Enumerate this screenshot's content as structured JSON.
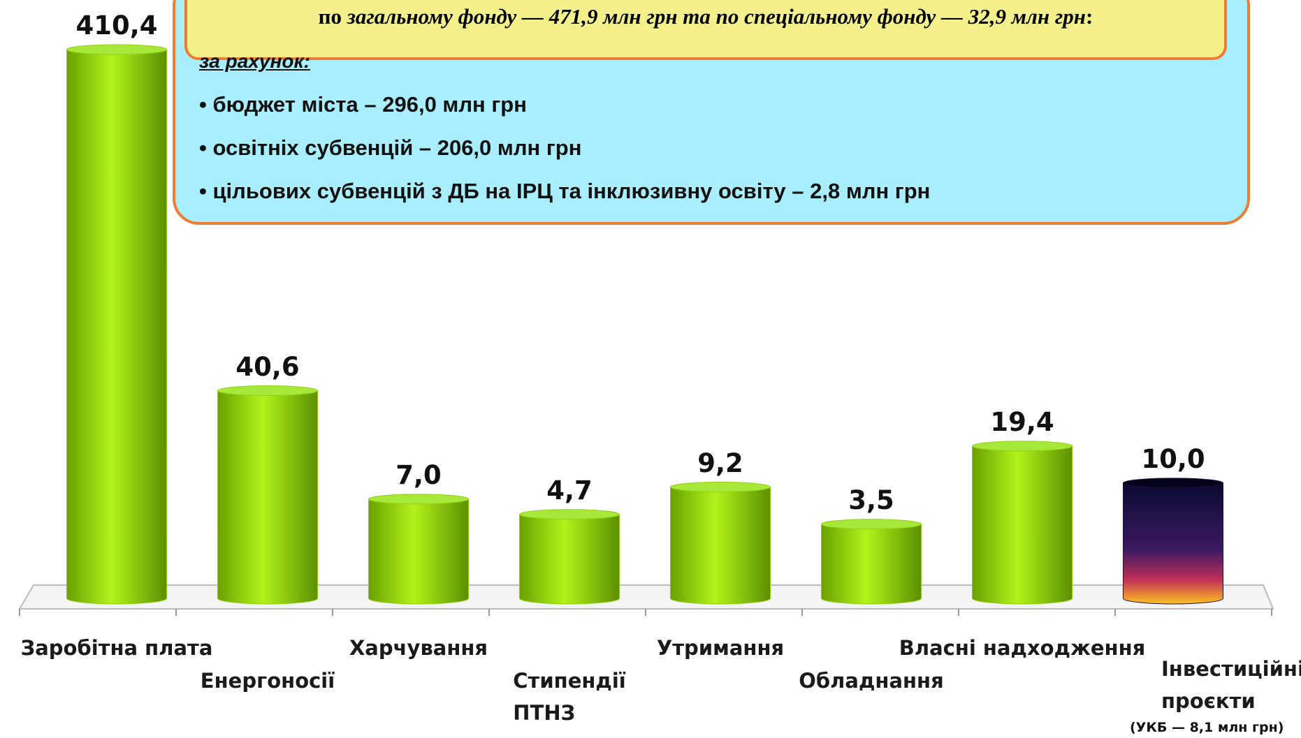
{
  "info": {
    "headline": [
      "по ",
      "загальному фонду — 471,9 млн грн та по спеціальному фонду — 32,9 млн грн",
      ":"
    ],
    "subheading": "за рахунок:",
    "bullets": [
      "• бюджет міста – 296,0 млн грн",
      "• освітніх субвенцій – 206,0 млн грн",
      "• цільових субвенцій з ДБ на ІРЦ та інклюзивну освіту – 2,8 млн грн"
    ]
  },
  "chart_data": {
    "type": "bar",
    "categories": [
      "Заробітна плата",
      "Енергоносії",
      "Харчування",
      "Стипендії\nПТНЗ",
      "Утримання",
      "Обладнання",
      "Власні надходження",
      "Інвестиційні\nпроєкти"
    ],
    "values": [
      410.4,
      40.6,
      7.0,
      4.7,
      9.2,
      3.5,
      19.4,
      10.0
    ],
    "value_labels": [
      "410,4",
      "40,6",
      "7,0",
      "4,7",
      "9,2",
      "3,5",
      "19,4",
      "10,0"
    ],
    "colors": [
      "#8fd10c",
      "#8fd10c",
      "#8fd10c",
      "#8fd10c",
      "#8fd10c",
      "#8fd10c",
      "#8fd10c",
      "#1a1240"
    ],
    "annotation": "(УКБ — 8,1 млн грн)"
  }
}
